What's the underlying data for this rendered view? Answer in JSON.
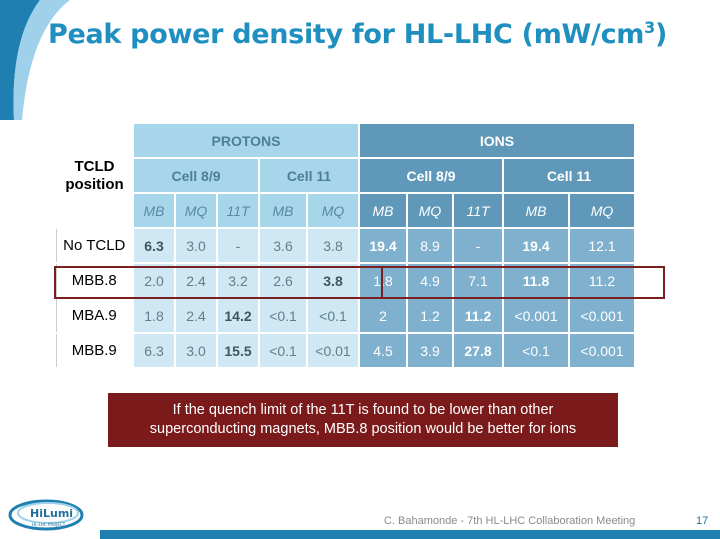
{
  "title": "Peak power density for HL-LHC (mW/cm",
  "title_sup": "3",
  "title_close": ")",
  "table": {
    "corner_line1": "TCLD",
    "corner_line2": "position",
    "group_protons": "PROTONS",
    "group_ions": "IONS",
    "sub_cell89": "Cell 8/9",
    "sub_cell11": "Cell 11",
    "columns": [
      "MB",
      "MQ",
      "11T",
      "MB",
      "MQ",
      "MB",
      "MQ",
      "11T",
      "MB",
      "MQ"
    ],
    "rows": [
      {
        "label": "No TCLD",
        "values": [
          "6.3",
          "3.0",
          "-",
          "3.6",
          "3.8",
          "19.4",
          "8.9",
          "-",
          "19.4",
          "12.1"
        ],
        "bold": [
          0,
          5,
          8
        ]
      },
      {
        "label": "MBB.8",
        "values": [
          "2.0",
          "2.4",
          "3.2",
          "2.6",
          "3.8",
          "1.8",
          "4.9",
          "7.1",
          "11.8",
          "11.2"
        ],
        "bold": [
          4,
          8
        ]
      },
      {
        "label": "MBA.9",
        "values": [
          "1.8",
          "2.4",
          "14.2",
          "<0.1",
          "<0.1",
          "2",
          "1.2",
          "11.2",
          "<0.001",
          "<0.001"
        ],
        "bold": [
          2,
          7
        ]
      },
      {
        "label": "MBB.9",
        "values": [
          "6.3",
          "3.0",
          "15.5",
          "<0.1",
          "<0.01",
          "4.5",
          "3.9",
          "27.8",
          "<0.1",
          "<0.001"
        ],
        "bold": [
          2,
          7
        ]
      }
    ]
  },
  "note": {
    "line1": "If the quench limit of the 11T is found to be lower than other",
    "line2": "superconducting magnets, MBB.8 position would be better for ions"
  },
  "logo_text": "HiLumi",
  "logo_subtext": "HL-LHC PROJECT",
  "footer": "C. Bahamonde - 7th HL-LHC Collaboration Meeting",
  "page_number": "17",
  "colors": {
    "title": "#1f8fbf",
    "protons": "#a7d6eb",
    "ions": "#5f98b8",
    "note": "#7b1a1a"
  }
}
